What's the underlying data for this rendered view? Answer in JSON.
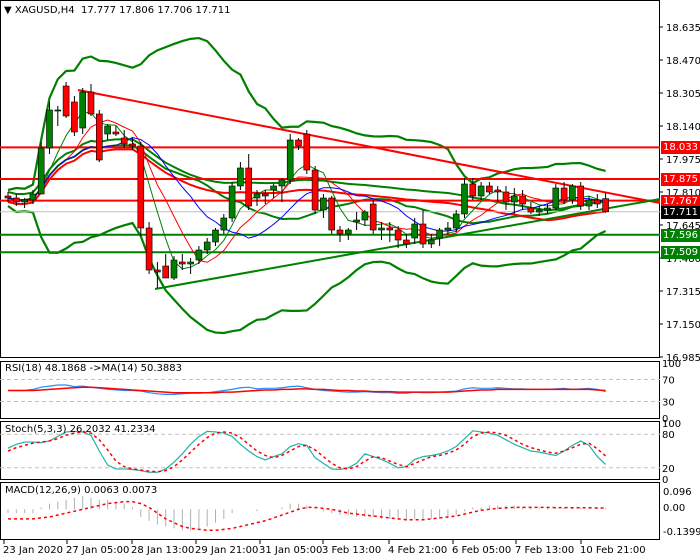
{
  "header": {
    "symbol": "XAGUSD,H4",
    "open": "17.777",
    "high": "17.806",
    "low": "17.706",
    "close": "17.711"
  },
  "price_axis": {
    "ticks": [
      "18.635",
      "18.470",
      "18.305",
      "18.140",
      "17.975",
      "17.810",
      "17.645",
      "17.480",
      "17.315",
      "17.150",
      "16.985"
    ],
    "tags": [
      {
        "value": "18.033",
        "color": "#ff0000",
        "role": "resistance"
      },
      {
        "value": "17.875",
        "color": "#ff0000",
        "role": "resistance"
      },
      {
        "value": "17.767",
        "color": "#ff0000",
        "role": "resistance"
      },
      {
        "value": "17.711",
        "color": "#000000",
        "role": "current-price"
      },
      {
        "value": "17.596",
        "color": "#008000",
        "role": "support"
      },
      {
        "value": "17.509",
        "color": "#008000",
        "role": "support"
      }
    ]
  },
  "rsi": {
    "label": "RSI(18) 48.1868  ->MA(14) 50.3883",
    "ticks": [
      "100",
      "70",
      "30",
      "0"
    ]
  },
  "stoch": {
    "label": "Stoch(5,3,3) 26.2032 41.2334",
    "ticks": [
      "100",
      "80",
      "20",
      "0"
    ]
  },
  "macd": {
    "label": "MACD(12,26,9) 0.0063 0.0073",
    "ticks": [
      "0.096",
      "0.00",
      "-0.1399"
    ]
  },
  "time_axis": {
    "labels": [
      "23 Jan 2020",
      "27 Jan 05:00",
      "28 Jan 13:00",
      "29 Jan 21:00",
      "31 Jan 05:00",
      "3 Feb 13:00",
      "4 Feb 21:00",
      "6 Feb 05:00",
      "7 Feb 13:00",
      "10 Feb 21:00"
    ]
  },
  "colors": {
    "bull": "#008000",
    "bear": "#ff0000",
    "ma_fast": "#ff0000",
    "ma_slow": "#0000ff",
    "bollinger": "#008000",
    "rsi": "#1e90ff",
    "stoch_main": "#20b2aa",
    "grid_dash": "#c0c0c0"
  },
  "chart_data": {
    "type": "candlestick",
    "title": "XAGUSD,H4",
    "candles": [
      [
        17.79,
        17.81,
        17.76,
        17.78
      ],
      [
        17.78,
        17.8,
        17.74,
        17.76
      ],
      [
        17.76,
        17.78,
        17.73,
        17.77
      ],
      [
        17.77,
        17.82,
        17.75,
        17.8
      ],
      [
        17.8,
        18.06,
        17.8,
        18.03
      ],
      [
        18.03,
        18.26,
        18.0,
        18.22
      ],
      [
        18.22,
        18.24,
        18.14,
        18.22
      ],
      [
        18.34,
        18.36,
        18.18,
        18.19
      ],
      [
        18.26,
        18.29,
        18.09,
        18.11
      ],
      [
        18.13,
        18.33,
        18.1,
        18.31
      ],
      [
        18.31,
        18.35,
        18.19,
        18.2
      ],
      [
        18.2,
        18.22,
        17.96,
        17.97
      ],
      [
        18.1,
        18.15,
        18.07,
        18.14
      ],
      [
        18.11,
        18.14,
        18.09,
        18.1
      ],
      [
        18.08,
        18.12,
        18.03,
        18.05
      ],
      [
        18.05,
        18.08,
        18.02,
        18.04
      ],
      [
        18.04,
        18.06,
        17.59,
        17.63
      ],
      [
        17.63,
        17.66,
        17.4,
        17.42
      ],
      [
        17.42,
        17.46,
        17.33,
        17.41
      ],
      [
        17.44,
        17.5,
        17.4,
        17.38
      ],
      [
        17.38,
        17.49,
        17.37,
        17.47
      ],
      [
        17.46,
        17.5,
        17.42,
        17.45
      ],
      [
        17.45,
        17.48,
        17.4,
        17.46
      ],
      [
        17.47,
        17.54,
        17.45,
        17.52
      ],
      [
        17.52,
        17.58,
        17.5,
        17.56
      ],
      [
        17.56,
        17.63,
        17.54,
        17.62
      ],
      [
        17.62,
        17.7,
        17.6,
        17.68
      ],
      [
        17.68,
        17.86,
        17.66,
        17.84
      ],
      [
        17.84,
        17.96,
        17.82,
        17.93
      ],
      [
        17.93,
        18.0,
        17.72,
        17.74
      ],
      [
        17.78,
        17.82,
        17.74,
        17.8
      ],
      [
        17.8,
        17.82,
        17.75,
        17.79
      ],
      [
        17.82,
        17.85,
        17.78,
        17.84
      ],
      [
        17.84,
        17.88,
        17.76,
        17.87
      ],
      [
        17.87,
        18.1,
        17.85,
        18.07
      ],
      [
        18.07,
        18.08,
        18.02,
        18.04
      ],
      [
        18.1,
        18.12,
        17.9,
        17.92
      ],
      [
        17.92,
        17.94,
        17.7,
        17.72
      ],
      [
        17.72,
        17.8,
        17.68,
        17.78
      ],
      [
        17.78,
        17.79,
        17.6,
        17.62
      ],
      [
        17.62,
        17.64,
        17.56,
        17.6
      ],
      [
        17.6,
        17.63,
        17.57,
        17.62
      ],
      [
        17.66,
        17.71,
        17.62,
        17.67
      ],
      [
        17.67,
        17.72,
        17.64,
        17.71
      ],
      [
        17.75,
        17.77,
        17.6,
        17.62
      ],
      [
        17.62,
        17.66,
        17.57,
        17.63
      ],
      [
        17.63,
        17.66,
        17.56,
        17.62
      ],
      [
        17.62,
        17.64,
        17.53,
        17.57
      ],
      [
        17.57,
        17.6,
        17.53,
        17.55
      ],
      [
        17.58,
        17.68,
        17.55,
        17.65
      ],
      [
        17.65,
        17.72,
        17.53,
        17.55
      ],
      [
        17.55,
        17.6,
        17.53,
        17.57
      ],
      [
        17.58,
        17.63,
        17.54,
        17.62
      ],
      [
        17.62,
        17.66,
        17.6,
        17.63
      ],
      [
        17.63,
        17.72,
        17.61,
        17.7
      ],
      [
        17.7,
        17.88,
        17.68,
        17.85
      ],
      [
        17.85,
        17.88,
        17.77,
        17.79
      ],
      [
        17.79,
        17.86,
        17.77,
        17.84
      ],
      [
        17.84,
        17.86,
        17.8,
        17.81
      ],
      [
        17.82,
        17.84,
        17.76,
        17.81
      ],
      [
        17.81,
        17.84,
        17.72,
        17.76
      ],
      [
        17.76,
        17.83,
        17.7,
        17.79
      ],
      [
        17.79,
        17.82,
        17.72,
        17.75
      ],
      [
        17.73,
        17.76,
        17.7,
        17.71
      ],
      [
        17.71,
        17.74,
        17.69,
        17.72
      ],
      [
        17.72,
        17.75,
        17.7,
        17.73
      ],
      [
        17.73,
        17.85,
        17.72,
        17.83
      ],
      [
        17.83,
        17.86,
        17.75,
        17.77
      ],
      [
        17.77,
        17.85,
        17.75,
        17.84
      ],
      [
        17.84,
        17.86,
        17.72,
        17.74
      ],
      [
        17.74,
        17.79,
        17.72,
        17.77
      ],
      [
        17.77,
        17.8,
        17.73,
        17.75
      ],
      [
        17.777,
        17.806,
        17.706,
        17.711
      ]
    ],
    "horizontal_levels": [
      18.033,
      17.875,
      17.767,
      17.596,
      17.509
    ],
    "current_price": 17.711,
    "trendlines": [
      {
        "color": "#ff0000",
        "from": [
          18.32,
          "27 Jan"
        ],
        "to": [
          17.76,
          "10 Feb end"
        ]
      },
      {
        "color": "#008000",
        "from": [
          17.32,
          "28 Jan"
        ],
        "to": [
          17.77,
          "10 Feb end"
        ]
      }
    ],
    "ylim": [
      16.985,
      18.72
    ],
    "xlabels": [
      "23 Jan 2020",
      "27 Jan 05:00",
      "28 Jan 13:00",
      "29 Jan 21:00",
      "31 Jan 05:00",
      "3 Feb 13:00",
      "4 Feb 21:00",
      "6 Feb 05:00",
      "7 Feb 13:00",
      "10 Feb 21:00"
    ],
    "indicators": {
      "rsi": {
        "period": 18,
        "value": 48.1868,
        "ma_period": 14,
        "ma_value": 50.3883,
        "levels": [
          70,
          30
        ],
        "ylim": [
          0,
          100
        ]
      },
      "stoch": {
        "params": [
          5,
          3,
          3
        ],
        "main": 26.2032,
        "signal": 41.2334,
        "levels": [
          80,
          20
        ],
        "ylim": [
          0,
          100
        ]
      },
      "macd": {
        "params": [
          12,
          26,
          9
        ],
        "main": 0.0063,
        "signal": 0.0073,
        "ylim": [
          -0.1399,
          0.096
        ]
      }
    }
  }
}
